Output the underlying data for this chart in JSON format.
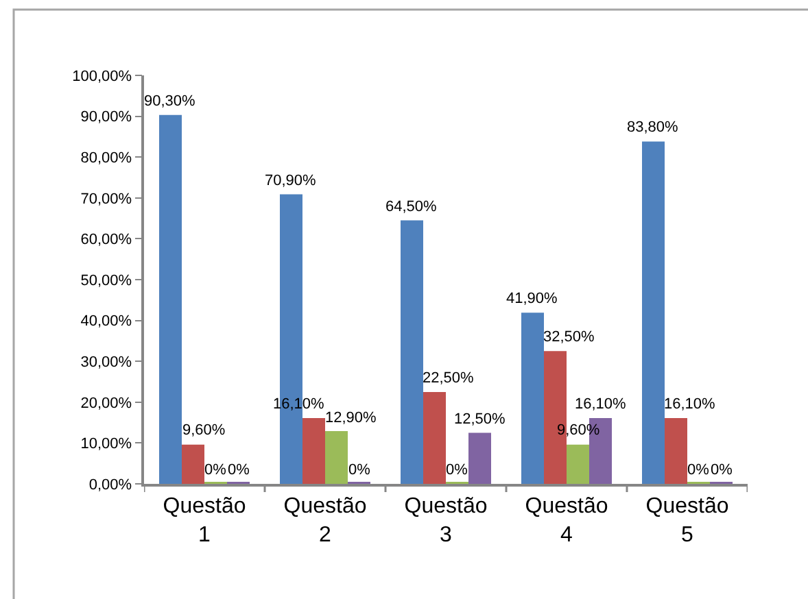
{
  "chart_data": {
    "type": "bar",
    "categories": [
      "Questão 1",
      "Questão 2",
      "Questão 3",
      "Questão 4",
      "Questão 5"
    ],
    "series": [
      {
        "color": "#4f81bd",
        "values": [
          90.3,
          70.9,
          64.5,
          41.9,
          83.8
        ],
        "value_labels": [
          "90,30%",
          "70,90%",
          "64,50%",
          "41,90%",
          "83,80%"
        ]
      },
      {
        "color": "#c0504d",
        "values": [
          9.6,
          16.1,
          22.5,
          32.5,
          16.1
        ],
        "value_labels": [
          "9,60%",
          "16,10%",
          "22,50%",
          "32,50%",
          "16,10%"
        ]
      },
      {
        "color": "#9bbb59",
        "values": [
          0,
          12.9,
          0,
          9.6,
          0
        ],
        "value_labels": [
          "0%",
          "12,90%",
          "0%",
          "9,60%",
          "0%"
        ]
      },
      {
        "color": "#8064a2",
        "values": [
          0,
          0,
          12.5,
          16.1,
          0
        ],
        "value_labels": [
          "0%",
          "0%",
          "12,50%",
          "16,10%",
          "0%"
        ]
      }
    ],
    "ylim": [
      0,
      100
    ],
    "yticks": [
      {
        "value": 0,
        "label": "0,00%"
      },
      {
        "value": 10,
        "label": "10,00%"
      },
      {
        "value": 20,
        "label": "20,00%"
      },
      {
        "value": 30,
        "label": "30,00%"
      },
      {
        "value": 40,
        "label": "40,00%"
      },
      {
        "value": 50,
        "label": "50,00%"
      },
      {
        "value": 60,
        "label": "60,00%"
      },
      {
        "value": 70,
        "label": "70,00%"
      },
      {
        "value": 80,
        "label": "80,00%"
      },
      {
        "value": 90,
        "label": "90,00%"
      },
      {
        "value": 100,
        "label": "100,00%"
      }
    ]
  }
}
